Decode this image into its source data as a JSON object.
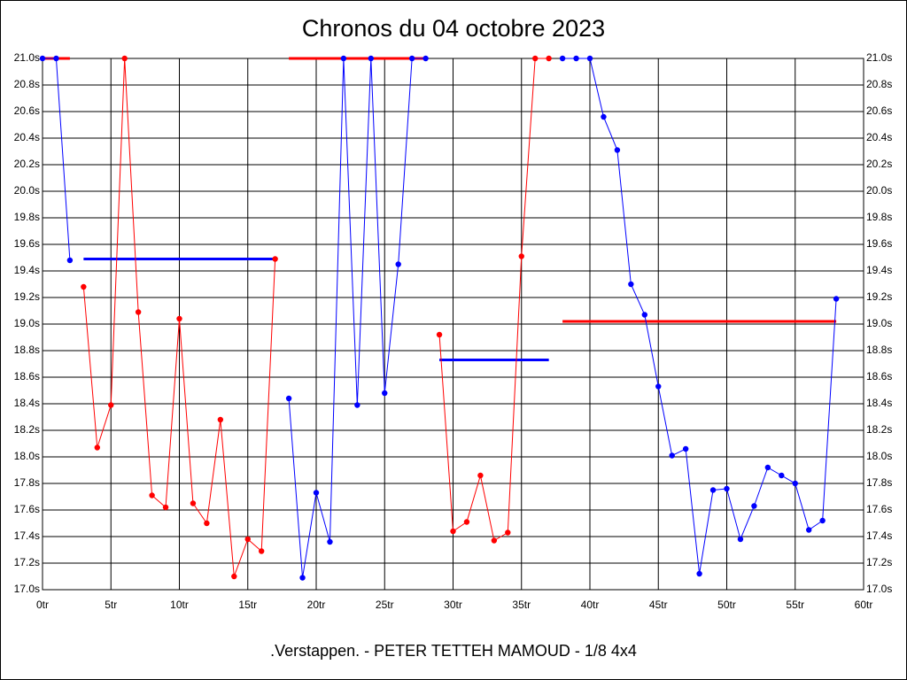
{
  "chart_data": {
    "type": "line",
    "title": "Chronos du 04 octobre 2023",
    "x_label": ".Verstappen. - PETER TETTEH MAMOUD - 1/8 4x4",
    "xlim": [
      0,
      60
    ],
    "xticks": [
      {
        "value": 0,
        "label": "0tr"
      },
      {
        "value": 5,
        "label": "5tr"
      },
      {
        "value": 10,
        "label": "10tr"
      },
      {
        "value": 15,
        "label": "15tr"
      },
      {
        "value": 20,
        "label": "20tr"
      },
      {
        "value": 25,
        "label": "25tr"
      },
      {
        "value": 30,
        "label": "30tr"
      },
      {
        "value": 35,
        "label": "35tr"
      },
      {
        "value": 40,
        "label": "40tr"
      },
      {
        "value": 45,
        "label": "45tr"
      },
      {
        "value": 50,
        "label": "50tr"
      },
      {
        "value": 55,
        "label": "55tr"
      },
      {
        "value": 60,
        "label": "60tr"
      }
    ],
    "ylim": [
      17.0,
      21.0
    ],
    "yticks": [
      {
        "value": 17.0,
        "label": "17.0s"
      },
      {
        "value": 17.2,
        "label": "17.2s"
      },
      {
        "value": 17.4,
        "label": "17.4s"
      },
      {
        "value": 17.6,
        "label": "17.6s"
      },
      {
        "value": 17.8,
        "label": "17.8s"
      },
      {
        "value": 18.0,
        "label": "18.0s"
      },
      {
        "value": 18.2,
        "label": "18.2s"
      },
      {
        "value": 18.4,
        "label": "18.4s"
      },
      {
        "value": 18.6,
        "label": "18.6s"
      },
      {
        "value": 18.8,
        "label": "18.8s"
      },
      {
        "value": 19.0,
        "label": "19.0s"
      },
      {
        "value": 19.2,
        "label": "19.2s"
      },
      {
        "value": 19.4,
        "label": "19.4s"
      },
      {
        "value": 19.6,
        "label": "19.6s"
      },
      {
        "value": 19.8,
        "label": "19.8s"
      },
      {
        "value": 20.0,
        "label": "20.0s"
      },
      {
        "value": 20.2,
        "label": "20.2s"
      },
      {
        "value": 20.4,
        "label": "20.4s"
      },
      {
        "value": 20.6,
        "label": "20.6s"
      },
      {
        "value": 20.8,
        "label": "20.8s"
      },
      {
        "value": 21.0,
        "label": "21.0s"
      }
    ],
    "grid": true,
    "series": [
      {
        "color": "#0000ff",
        "x": [
          0,
          1,
          2
        ],
        "values": [
          21.0,
          21.0,
          19.48
        ]
      },
      {
        "color": "#ff0000",
        "x": [
          3,
          4,
          5,
          6,
          7,
          8,
          9,
          10,
          11,
          12,
          13,
          14,
          15,
          16,
          17
        ],
        "values": [
          19.28,
          18.07,
          18.39,
          21.0,
          19.09,
          17.71,
          17.62,
          19.04,
          17.65,
          17.5,
          18.28,
          17.1,
          17.38,
          17.29,
          19.49
        ]
      },
      {
        "color": "#0000ff",
        "x": [
          18,
          19,
          20,
          21,
          22,
          23,
          24,
          25,
          26,
          27,
          28
        ],
        "values": [
          18.44,
          17.09,
          17.73,
          17.36,
          21.0,
          18.39,
          21.0,
          18.48,
          19.45,
          21.0,
          21.0
        ]
      },
      {
        "color": "#ff0000",
        "x": [
          29,
          30,
          31,
          32,
          33,
          34,
          35,
          36,
          37
        ],
        "values": [
          18.92,
          17.44,
          17.51,
          17.86,
          17.37,
          17.43,
          19.51,
          21.0,
          21.0
        ]
      },
      {
        "color": "#0000ff",
        "x": [
          38,
          39,
          40,
          41,
          42,
          43,
          44,
          45,
          46,
          47,
          48,
          49,
          50,
          51,
          52,
          53,
          54,
          55,
          56,
          57,
          58
        ],
        "values": [
          21.0,
          21.0,
          21.0,
          20.56,
          20.31,
          19.3,
          19.07,
          18.53,
          18.01,
          18.06,
          17.12,
          17.75,
          17.76,
          17.38,
          17.63,
          17.92,
          17.86,
          17.8,
          17.45,
          17.52,
          19.19
        ]
      }
    ],
    "average_lines": [
      {
        "color": "#ff0000",
        "x": [
          0,
          2
        ],
        "value": 21.0
      },
      {
        "color": "#0000ff",
        "x": [
          3,
          17
        ],
        "value": 19.49
      },
      {
        "color": "#ff0000",
        "x": [
          18,
          28
        ],
        "value": 21.0
      },
      {
        "color": "#0000ff",
        "x": [
          29,
          37
        ],
        "value": 18.73
      },
      {
        "color": "#ff0000",
        "x": [
          38,
          58
        ],
        "value": 19.02
      }
    ]
  }
}
